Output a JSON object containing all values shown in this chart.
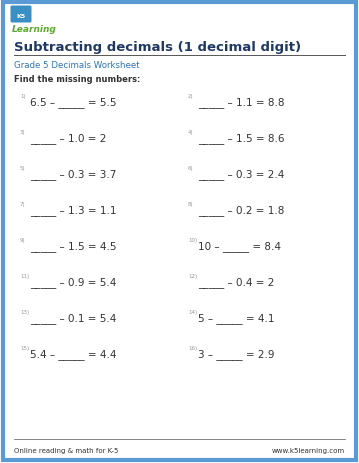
{
  "title": "Subtracting decimals (1 decimal digit)",
  "subtitle": "Grade 5 Decimals Worksheet",
  "instruction": "Find the missing numbers:",
  "footer_left": "Online reading & math for K-5",
  "footer_right": "www.k5learning.com",
  "border_color": "#5b9bd5",
  "title_color": "#1f3864",
  "subtitle_color": "#2e75b6",
  "instruction_color": "#333333",
  "text_color": "#333333",
  "num_color": "#999999",
  "problems": [
    {
      "num": "1)",
      "text": "6.5 – _____ = 5.5",
      "col": 0
    },
    {
      "num": "2)",
      "text": "_____ – 1.1 = 8.8",
      "col": 1
    },
    {
      "num": "3)",
      "text": "_____ – 1.0 = 2",
      "col": 0
    },
    {
      "num": "4)",
      "text": "_____ – 1.5 = 8.6",
      "col": 1
    },
    {
      "num": "5)",
      "text": "_____ – 0.3 = 3.7",
      "col": 0
    },
    {
      "num": "6)",
      "text": "_____ – 0.3 = 2.4",
      "col": 1
    },
    {
      "num": "7)",
      "text": "_____ – 1.3 = 1.1",
      "col": 0
    },
    {
      "num": "8)",
      "text": "_____ – 0.2 = 1.8",
      "col": 1
    },
    {
      "num": "9)",
      "text": "_____ – 1.5 = 4.5",
      "col": 0
    },
    {
      "num": "10)",
      "text": "10 – _____ = 8.4",
      "col": 1
    },
    {
      "num": "11)",
      "text": "_____ – 0.9 = 5.4",
      "col": 0
    },
    {
      "num": "12)",
      "text": "_____ – 0.4 = 2",
      "col": 1
    },
    {
      "num": "13)",
      "text": "_____ – 0.1 = 5.4",
      "col": 0
    },
    {
      "num": "14)",
      "text": "5 – _____ = 4.1",
      "col": 1
    },
    {
      "num": "15)",
      "text": "5.4 – _____ = 4.4",
      "col": 0
    },
    {
      "num": "16)",
      "text": "3 – _____ = 2.9",
      "col": 1
    }
  ],
  "fig_width": 3.59,
  "fig_height": 4.64,
  "dpi": 100
}
